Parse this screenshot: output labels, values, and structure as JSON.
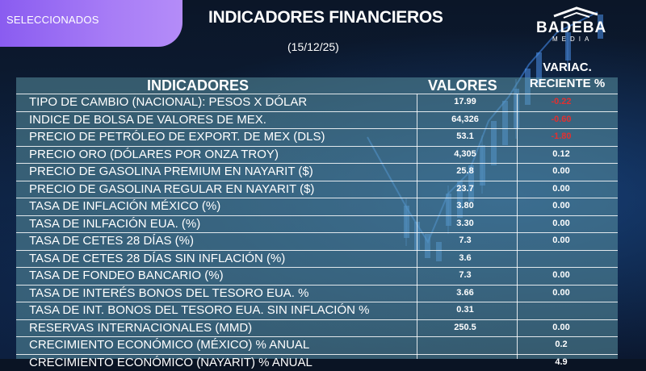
{
  "tag": {
    "label": "SELECCIONADOS"
  },
  "header": {
    "title": "INDICADORES FINANCIEROS",
    "date": "(15/12/25)"
  },
  "logo": {
    "main": "BADEBA",
    "sub": "MEDIA"
  },
  "table": {
    "col_indicator": "INDICADORES",
    "col_value": "VALORES",
    "col_change_line1": "VARIAC.",
    "col_change_line2": "RECIENTE %",
    "rows": [
      {
        "name": "TIPO DE CAMBIO (NACIONAL): PESOS X DÓLAR",
        "value": "17.99",
        "change": "-0.22",
        "neg": true
      },
      {
        "name": "INDICE DE BOLSA DE VALORES DE MEX.",
        "value": "64,326",
        "change": "-0.60",
        "neg": true
      },
      {
        "name": "PRECIO DE PETRÓLEO DE EXPORT. DE MEX (DLS)",
        "value": "53.1",
        "change": "-1.80",
        "neg": true
      },
      {
        "name": "PRECIO ORO (DÓLARES POR ONZA TROY)",
        "value": "4,305",
        "change": "0.12",
        "neg": false
      },
      {
        "name": "PRECIO DE GASOLINA PREMIUM EN NAYARIT ($)",
        "value": "25.8",
        "change": "0.00",
        "neg": false
      },
      {
        "name": "PRECIO DE GASOLINA REGULAR EN NAYARIT ($)",
        "value": "23.7",
        "change": "0.00",
        "neg": false
      },
      {
        "name": "TASA DE INFLACIÓN MÉXICO (%)",
        "value": "3.80",
        "change": "0.00",
        "neg": false
      },
      {
        "name": "TASA DE INLFACIÓN EUA. (%)",
        "value": "3.30",
        "change": "0.00",
        "neg": false
      },
      {
        "name": "TASA DE CETES 28 DÍAS (%)",
        "value": "7.3",
        "change": "0.00",
        "neg": false
      },
      {
        "name": "TASA DE CETES 28 DÍAS SIN INFLACIÓN (%)",
        "value": "3.6",
        "change": "",
        "neg": false
      },
      {
        "name": "TASA DE FONDEO BANCARIO (%)",
        "value": "7.3",
        "change": "0.00",
        "neg": false
      },
      {
        "name": "TASA DE INTERÉS BONOS DEL TESORO EUA. %",
        "value": "3.66",
        "change": "0.00",
        "neg": false
      },
      {
        "name": "TASA DE INT. BONOS DEL TESORO  EUA. SIN INFLACIÓN %",
        "value": "0.31",
        "change": "",
        "neg": false
      },
      {
        "name": "RESERVAS INTERNACIONALES (MMD)",
        "value": "250.5",
        "change": "0.00",
        "neg": false
      },
      {
        "name": "CRECIMIENTO ECONÓMICO (MÉXICO) % ANUAL",
        "value": "",
        "change": "0.2",
        "neg": false
      },
      {
        "name": "CRECIMIENTO ECONÓMICO (NAYARIT) % ANUAL",
        "value": "",
        "change": "4.9",
        "neg": false
      }
    ]
  },
  "colors": {
    "tag": "#9b6cf4",
    "negative": "#e23030",
    "table_bg": "#5f9baa"
  }
}
